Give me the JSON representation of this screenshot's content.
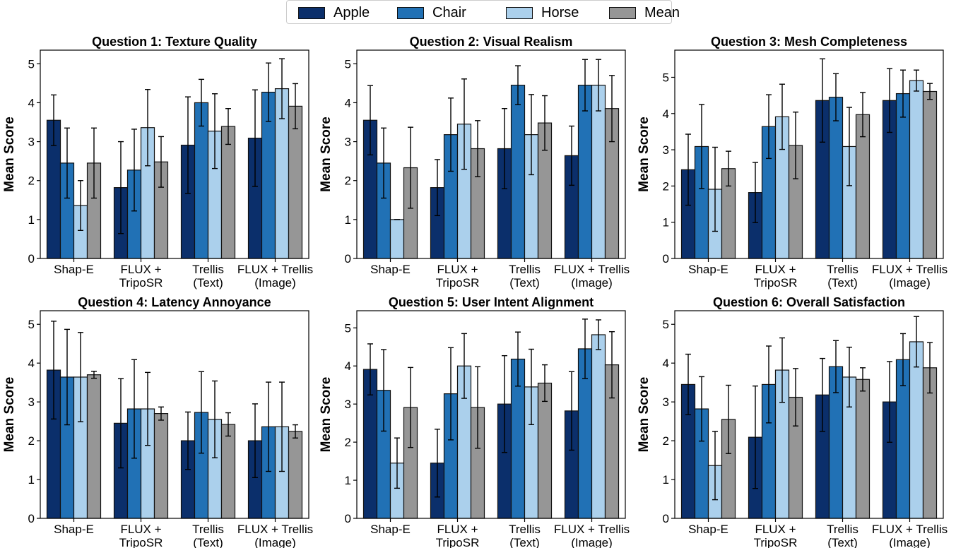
{
  "legend": {
    "entries": [
      {
        "name": "Apple",
        "color": "#0b2f6b"
      },
      {
        "name": "Chair",
        "color": "#2171b5"
      },
      {
        "name": "Horse",
        "color": "#abd0ec"
      },
      {
        "name": "Mean",
        "color": "#969696"
      }
    ]
  },
  "chart_data": [
    {
      "type": "bar",
      "title": "Question 1: Texture Quality",
      "ylabel": "Mean Score",
      "categories": [
        [
          "Shap-E"
        ],
        [
          "FLUX +",
          "TripoSR"
        ],
        [
          "Trellis",
          "(Text)"
        ],
        [
          "FLUX + Trellis",
          "(Image)"
        ]
      ],
      "ylim": [
        0,
        5.35
      ],
      "yticks": [
        0,
        1,
        2,
        3,
        4,
        5
      ],
      "series": [
        {
          "name": "Apple",
          "values": [
            3.55,
            1.82,
            2.91,
            3.09
          ],
          "errors": [
            0.65,
            1.18,
            1.24,
            1.24
          ]
        },
        {
          "name": "Chair",
          "values": [
            2.45,
            2.27,
            4.0,
            4.27
          ],
          "errors": [
            0.9,
            1.05,
            0.6,
            0.75
          ]
        },
        {
          "name": "Horse",
          "values": [
            1.36,
            3.36,
            3.27,
            4.36
          ],
          "errors": [
            0.64,
            0.98,
            0.96,
            0.77
          ]
        },
        {
          "name": "Mean",
          "values": [
            2.45,
            2.48,
            3.39,
            3.91
          ],
          "errors": [
            0.9,
            0.65,
            0.46,
            0.58
          ]
        }
      ]
    },
    {
      "type": "bar",
      "title": "Question 2: Visual Realism",
      "ylabel": "Mean Score",
      "categories": [
        [
          "Shap-E"
        ],
        [
          "FLUX +",
          "TripoSR"
        ],
        [
          "Trellis",
          "(Text)"
        ],
        [
          "FLUX + Trellis",
          "(Image)"
        ]
      ],
      "ylim": [
        0,
        5.35
      ],
      "yticks": [
        0,
        1,
        2,
        3,
        4,
        5
      ],
      "series": [
        {
          "name": "Apple",
          "values": [
            3.55,
            1.82,
            2.82,
            2.64
          ],
          "errors": [
            0.89,
            0.72,
            1.03,
            0.76
          ]
        },
        {
          "name": "Chair",
          "values": [
            2.45,
            3.18,
            4.45,
            4.45
          ],
          "errors": [
            0.9,
            0.94,
            0.5,
            0.66
          ]
        },
        {
          "name": "Horse",
          "values": [
            1.0,
            3.45,
            3.18,
            4.45
          ],
          "errors": [
            0,
            1.16,
            1.03,
            0.66
          ]
        },
        {
          "name": "Mean",
          "values": [
            2.33,
            2.82,
            3.48,
            3.85
          ],
          "errors": [
            1.04,
            0.72,
            0.7,
            0.85
          ]
        }
      ]
    },
    {
      "type": "bar",
      "title": "Question 3: Mesh Completeness",
      "ylabel": "Mean Score",
      "categories": [
        [
          "Shap-E"
        ],
        [
          "FLUX +",
          "TripoSR"
        ],
        [
          "Trellis",
          "(Text)"
        ],
        [
          "FLUX + Trellis",
          "(Image)"
        ]
      ],
      "ylim": [
        0,
        5.75
      ],
      "yticks": [
        0,
        1,
        2,
        3,
        4,
        5
      ],
      "series": [
        {
          "name": "Apple",
          "values": [
            2.45,
            1.82,
            4.36,
            4.36
          ],
          "errors": [
            0.98,
            0.83,
            1.15,
            0.88
          ]
        },
        {
          "name": "Chair",
          "values": [
            3.09,
            3.64,
            4.45,
            4.55
          ],
          "errors": [
            1.16,
            0.88,
            0.65,
            0.65
          ]
        },
        {
          "name": "Horse",
          "values": [
            1.91,
            3.91,
            3.09,
            4.91
          ],
          "errors": [
            1.16,
            0.9,
            1.08,
            0.29
          ]
        },
        {
          "name": "Mean",
          "values": [
            2.48,
            3.12,
            3.97,
            4.61
          ],
          "errors": [
            0.48,
            0.92,
            0.61,
            0.22
          ]
        }
      ]
    },
    {
      "type": "bar",
      "title": "Question 4: Latency Annoyance",
      "ylabel": "Mean Score",
      "categories": [
        [
          "Shap-E"
        ],
        [
          "FLUX +",
          "TripoSR"
        ],
        [
          "Trellis",
          "(Text)"
        ],
        [
          "FLUX + Trellis",
          "(Image)"
        ]
      ],
      "ylim": [
        0,
        5.35
      ],
      "yticks": [
        0,
        1,
        2,
        3,
        4,
        5
      ],
      "series": [
        {
          "name": "Apple",
          "values": [
            3.82,
            2.45,
            2.0,
            2.0
          ],
          "errors": [
            1.26,
            1.15,
            0.74,
            0.95
          ]
        },
        {
          "name": "Chair",
          "values": [
            3.64,
            2.82,
            2.73,
            2.36
          ],
          "errors": [
            1.23,
            1.27,
            1.05,
            1.15
          ]
        },
        {
          "name": "Horse",
          "values": [
            3.64,
            2.82,
            2.55,
            2.36
          ],
          "errors": [
            1.15,
            0.94,
            0.99,
            1.15
          ]
        },
        {
          "name": "Mean",
          "values": [
            3.7,
            2.7,
            2.42,
            2.24
          ],
          "errors": [
            0.09,
            0.17,
            0.3,
            0.17
          ]
        }
      ]
    },
    {
      "type": "bar",
      "title": "Question 5: User Intent Alignment",
      "ylabel": "Mean Score",
      "categories": [
        [
          "Shap-E"
        ],
        [
          "FLUX +",
          "TripoSR"
        ],
        [
          "Trellis",
          "(Text)"
        ],
        [
          "FLUX + Trellis",
          "(Image)"
        ]
      ],
      "ylim": [
        0,
        5.45
      ],
      "yticks": [
        0,
        1,
        2,
        3,
        4,
        5
      ],
      "series": [
        {
          "name": "Apple",
          "values": [
            3.91,
            1.45,
            3.0,
            2.82
          ],
          "errors": [
            0.67,
            0.89,
            1.27,
            1.03
          ]
        },
        {
          "name": "Chair",
          "values": [
            3.36,
            3.27,
            4.18,
            4.45
          ],
          "errors": [
            1.07,
            1.21,
            0.71,
            0.78
          ]
        },
        {
          "name": "Horse",
          "values": [
            1.45,
            4.0,
            3.45,
            4.82
          ],
          "errors": [
            0.66,
            0.85,
            0.99,
            0.39
          ]
        },
        {
          "name": "Mean",
          "values": [
            2.91,
            2.91,
            3.55,
            4.03
          ],
          "errors": [
            1.05,
            1.07,
            0.48,
            0.87
          ]
        }
      ]
    },
    {
      "type": "bar",
      "title": "Question 6: Overall Satisfaction",
      "ylabel": "Mean Score",
      "categories": [
        [
          "Shap-E"
        ],
        [
          "FLUX +",
          "TripoSR"
        ],
        [
          "Trellis",
          "(Text)"
        ],
        [
          "FLUX + Trellis",
          "(Image)"
        ]
      ],
      "ylim": [
        0,
        5.35
      ],
      "yticks": [
        0,
        1,
        2,
        3,
        4,
        5
      ],
      "series": [
        {
          "name": "Apple",
          "values": [
            3.45,
            2.09,
            3.18,
            3.0
          ],
          "errors": [
            0.78,
            1.32,
            0.94,
            1.04
          ]
        },
        {
          "name": "Chair",
          "values": [
            2.82,
            3.45,
            3.91,
            4.09
          ],
          "errors": [
            0.83,
            0.99,
            0.67,
            0.67
          ]
        },
        {
          "name": "Horse",
          "values": [
            1.36,
            3.82,
            3.64,
            4.55
          ],
          "errors": [
            0.88,
            0.83,
            0.77,
            0.65
          ]
        },
        {
          "name": "Mean",
          "values": [
            2.55,
            3.12,
            3.58,
            3.88
          ],
          "errors": [
            0.88,
            0.74,
            0.3,
            0.65
          ]
        }
      ]
    }
  ]
}
